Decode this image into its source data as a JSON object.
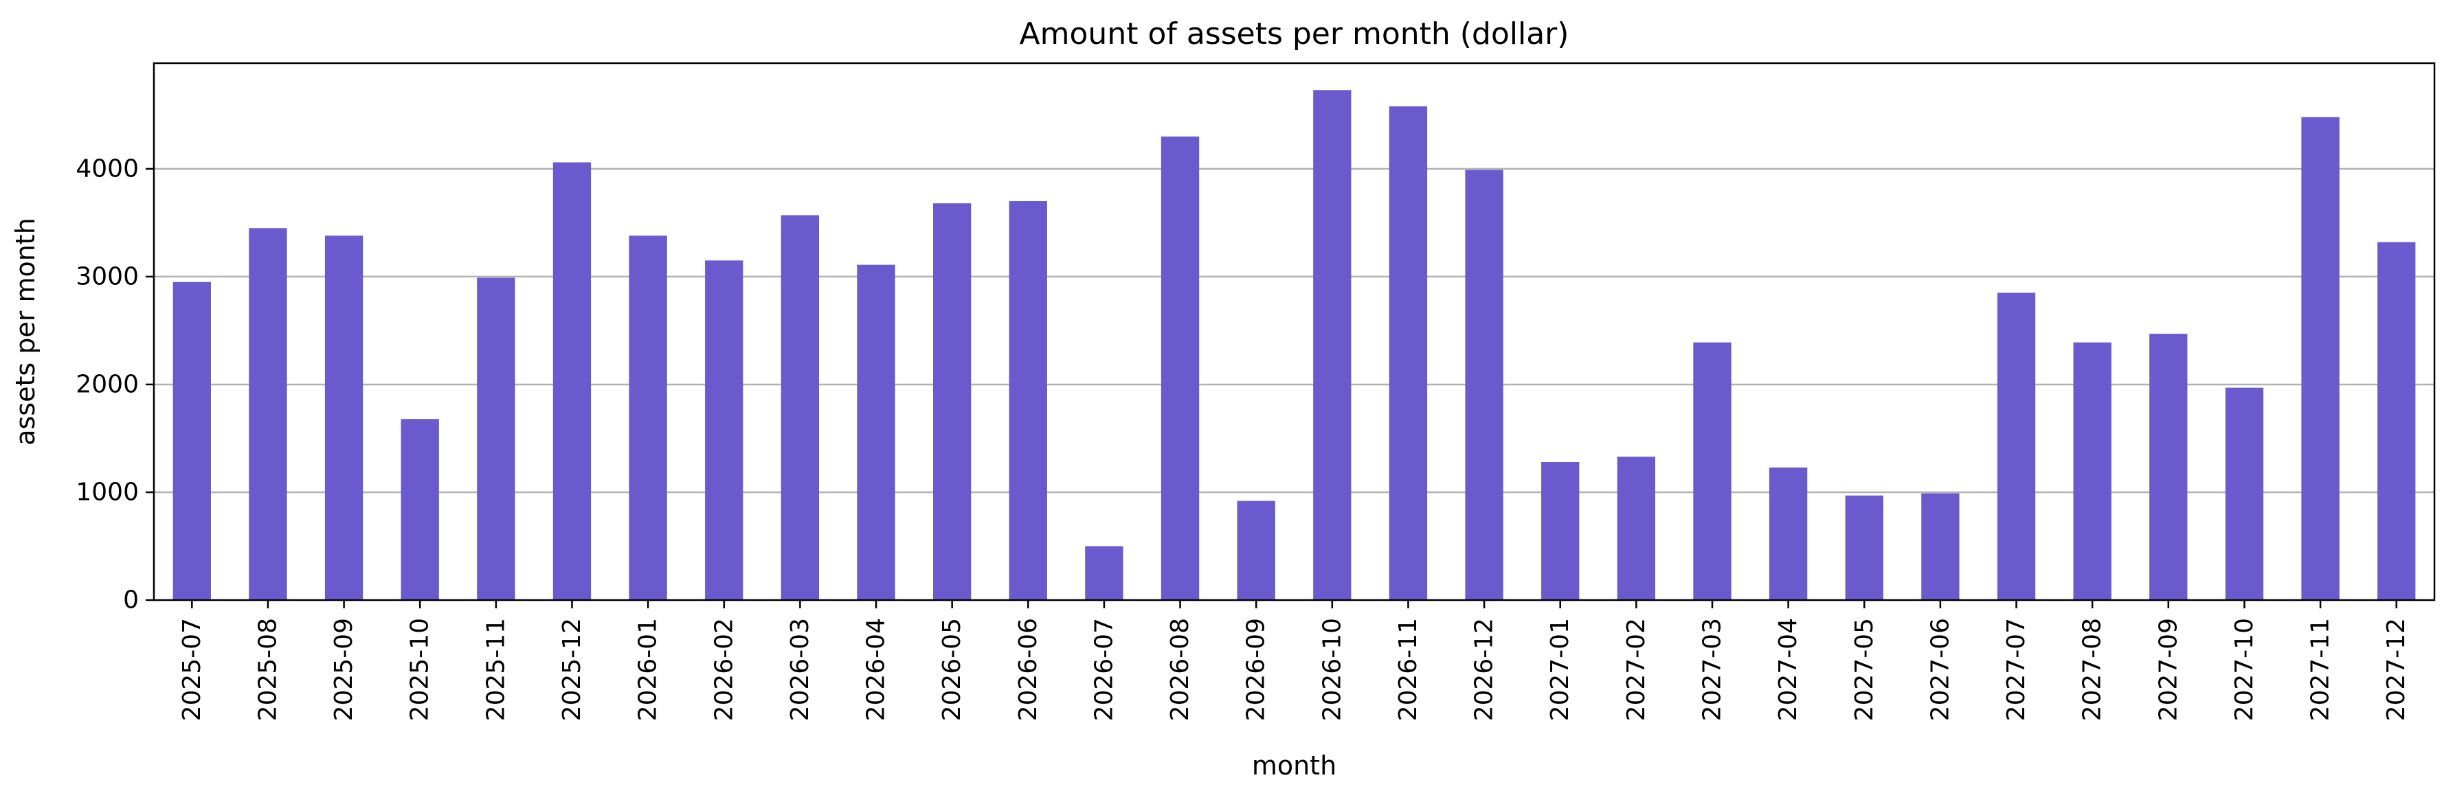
{
  "chart_data": {
    "type": "bar",
    "title": "Amount of assets per month (dollar)",
    "xlabel": "month",
    "ylabel": "assets per month",
    "categories": [
      "2025-07",
      "2025-08",
      "2025-09",
      "2025-10",
      "2025-11",
      "2025-12",
      "2026-01",
      "2026-02",
      "2026-03",
      "2026-04",
      "2026-05",
      "2026-06",
      "2026-07",
      "2026-08",
      "2026-09",
      "2026-10",
      "2026-11",
      "2026-12",
      "2027-01",
      "2027-02",
      "2027-03",
      "2027-04",
      "2027-05",
      "2027-06",
      "2027-07",
      "2027-08",
      "2027-09",
      "2027-10",
      "2027-11",
      "2027-12"
    ],
    "values": [
      2950,
      3450,
      3380,
      1680,
      2990,
      4060,
      3380,
      3150,
      3570,
      3110,
      3680,
      3700,
      500,
      4300,
      920,
      4730,
      4580,
      3990,
      1280,
      1330,
      2390,
      1230,
      970,
      990,
      2850,
      2390,
      2470,
      1970,
      4480,
      3320
    ],
    "ylim": [
      0,
      4980
    ],
    "yticks": [
      0,
      1000,
      2000,
      3000,
      4000
    ],
    "y_grid": true,
    "x_grid": false,
    "legend": "none",
    "bar_color": "#6a5acd"
  }
}
